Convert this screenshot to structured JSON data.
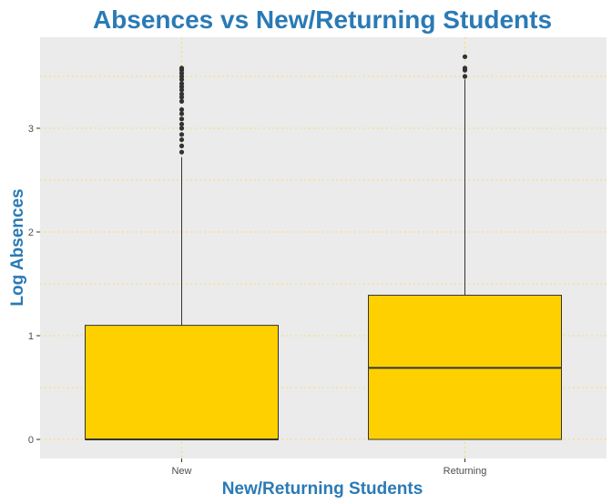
{
  "chart_data": {
    "type": "box",
    "title": "Absences vs New/Returning Students",
    "xlabel": "New/Returning Students",
    "ylabel": "Log Absences",
    "ylim": [
      -0.2,
      3.85
    ],
    "yticks": [
      0,
      1,
      2,
      3
    ],
    "categories": [
      "New",
      "Returning"
    ],
    "boxes": [
      {
        "name": "New",
        "min": 0,
        "q1": 0,
        "median": 0,
        "q3": 1.1,
        "whisker_high": 2.72,
        "outliers": [
          2.77,
          2.83,
          2.89,
          2.94,
          3.0,
          3.04,
          3.09,
          3.14,
          3.18,
          3.26,
          3.3,
          3.33,
          3.37,
          3.4,
          3.43,
          3.47,
          3.5,
          3.53,
          3.56,
          3.58
        ]
      },
      {
        "name": "Returning",
        "min": 0,
        "q1": 0,
        "median": 0.69,
        "q3": 1.39,
        "whisker_high": 3.47,
        "outliers": [
          3.5,
          3.56,
          3.58,
          3.69
        ]
      }
    ],
    "colors": {
      "box_fill": "#ffd000",
      "panel_bg": "#ebebeb",
      "grid": "#ffd000",
      "title": "#2a7ab5",
      "outline": "#333333"
    }
  }
}
